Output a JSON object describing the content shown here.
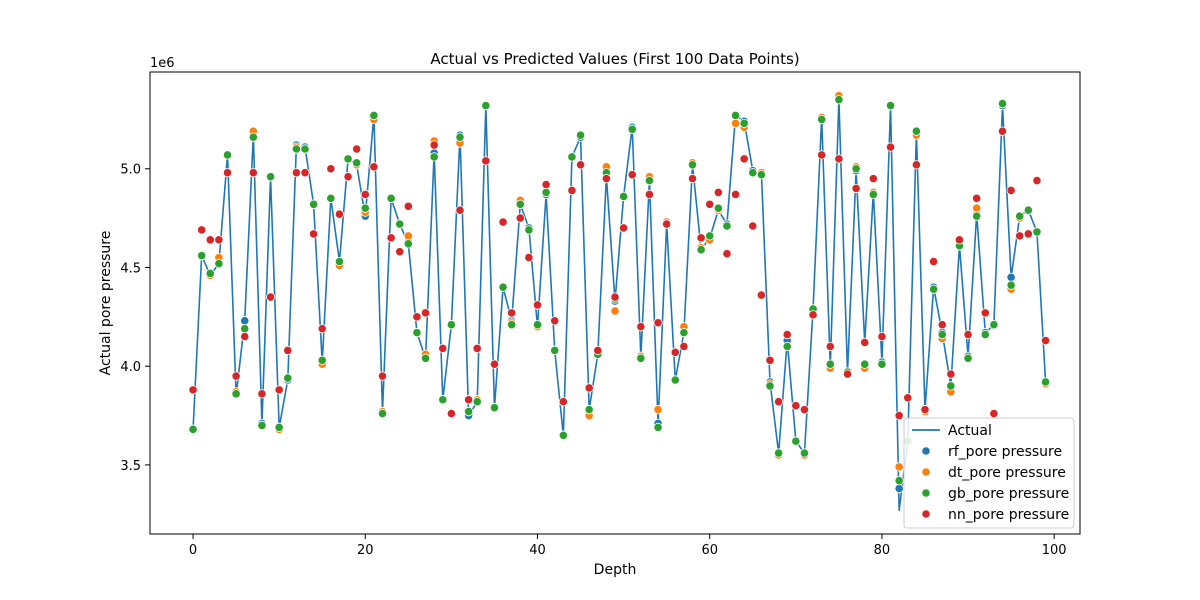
{
  "chart_data": {
    "type": "scatter",
    "title": "Actual vs Predicted Values (First 100 Data Points)",
    "xlabel": "Depth",
    "ylabel": "Actual pore pressure",
    "offset_text": "1e6",
    "xlim": [
      -5,
      103
    ],
    "ylim": [
      3.15,
      5.49
    ],
    "x_ticks": [
      0,
      20,
      40,
      60,
      80,
      100
    ],
    "y_ticks": [
      3.5,
      4.0,
      4.5,
      5.0
    ],
    "y_tick_labels": [
      "3.5",
      "4.0",
      "4.5",
      "5.0"
    ],
    "grid": false,
    "legend_position": "lower-right",
    "x": [
      0,
      1,
      2,
      3,
      4,
      5,
      6,
      7,
      8,
      9,
      10,
      11,
      12,
      13,
      14,
      15,
      16,
      17,
      18,
      19,
      20,
      21,
      22,
      23,
      24,
      25,
      26,
      27,
      28,
      29,
      30,
      31,
      32,
      33,
      34,
      35,
      36,
      37,
      38,
      39,
      40,
      41,
      42,
      43,
      44,
      45,
      46,
      47,
      48,
      49,
      50,
      51,
      52,
      53,
      54,
      55,
      56,
      57,
      58,
      59,
      60,
      61,
      62,
      63,
      64,
      65,
      66,
      67,
      68,
      69,
      70,
      71,
      72,
      73,
      74,
      75,
      76,
      77,
      78,
      79,
      80,
      81,
      82,
      83,
      84,
      85,
      86,
      87,
      88,
      89,
      90,
      91,
      92,
      93,
      94,
      95,
      96,
      97,
      98,
      99
    ],
    "series": [
      {
        "name": "Actual",
        "kind": "line",
        "color": "#1f77b4",
        "values": [
          3.68,
          4.56,
          4.46,
          4.52,
          5.07,
          3.85,
          4.23,
          5.17,
          3.71,
          4.96,
          3.69,
          3.93,
          5.12,
          5.11,
          4.82,
          4.02,
          4.85,
          4.53,
          5.05,
          5.02,
          4.76,
          5.27,
          3.77,
          4.85,
          4.72,
          4.62,
          4.17,
          4.04,
          5.08,
          3.83,
          4.21,
          5.17,
          3.75,
          3.82,
          5.32,
          3.79,
          4.4,
          4.23,
          4.82,
          4.7,
          4.2,
          4.87,
          4.08,
          3.65,
          5.06,
          5.16,
          3.78,
          4.06,
          4.96,
          4.33,
          4.86,
          5.21,
          4.05,
          4.94,
          3.71,
          4.72,
          3.93,
          4.17,
          5.02,
          4.59,
          4.65,
          4.79,
          4.72,
          5.27,
          5.24,
          4.99,
          4.98,
          3.92,
          3.56,
          4.13,
          3.62,
          3.56,
          4.29,
          5.26,
          4.0,
          5.35,
          3.97,
          4.99,
          4.12,
          4.88,
          4.02,
          5.32,
          3.27,
          3.62,
          5.18,
          3.78,
          4.4,
          4.17,
          3.9,
          4.61,
          4.05,
          4.77,
          4.17,
          4.21,
          5.32,
          4.45,
          4.76,
          4.79,
          4.68,
          3.92
        ]
      },
      {
        "name": "rf_pore pressure",
        "kind": "scatter",
        "color": "#1f77b4",
        "values": [
          3.68,
          4.56,
          4.46,
          4.52,
          5.07,
          3.86,
          4.23,
          5.17,
          3.71,
          4.96,
          3.69,
          3.93,
          5.12,
          5.11,
          4.82,
          4.02,
          4.85,
          4.53,
          5.05,
          5.02,
          4.76,
          5.27,
          3.77,
          4.85,
          4.72,
          4.63,
          4.17,
          4.04,
          5.08,
          3.83,
          4.21,
          5.17,
          3.75,
          3.82,
          5.32,
          3.79,
          4.4,
          4.23,
          4.82,
          4.7,
          4.2,
          4.87,
          4.08,
          3.65,
          5.06,
          5.16,
          3.78,
          4.06,
          4.96,
          4.33,
          4.86,
          5.21,
          4.05,
          4.94,
          3.71,
          4.72,
          3.93,
          4.17,
          5.02,
          4.59,
          4.65,
          4.79,
          4.72,
          5.27,
          5.24,
          4.99,
          4.98,
          3.92,
          3.56,
          4.13,
          3.62,
          3.56,
          4.29,
          5.26,
          4.0,
          5.35,
          3.97,
          4.99,
          4.12,
          4.88,
          4.02,
          5.32,
          3.38,
          3.62,
          5.18,
          3.78,
          4.4,
          4.17,
          3.9,
          4.61,
          4.05,
          4.77,
          4.17,
          4.21,
          5.32,
          4.45,
          4.76,
          4.79,
          4.68,
          3.92
        ]
      },
      {
        "name": "dt_pore pressure",
        "kind": "scatter",
        "color": "#ff7f0e",
        "values": [
          3.68,
          4.56,
          4.46,
          4.55,
          5.07,
          3.87,
          4.19,
          5.19,
          3.7,
          4.96,
          3.68,
          3.94,
          5.11,
          5.1,
          4.82,
          4.01,
          4.85,
          4.51,
          5.05,
          5.02,
          4.78,
          5.25,
          3.77,
          4.85,
          4.72,
          4.66,
          4.17,
          4.06,
          5.14,
          3.83,
          4.21,
          5.13,
          3.77,
          3.83,
          5.32,
          3.79,
          4.4,
          4.22,
          4.84,
          4.69,
          4.2,
          4.88,
          4.08,
          3.65,
          5.06,
          5.17,
          3.75,
          4.07,
          5.01,
          4.28,
          4.86,
          5.2,
          4.05,
          4.96,
          3.78,
          4.73,
          3.93,
          4.2,
          5.03,
          4.6,
          4.64,
          4.79,
          4.71,
          5.23,
          5.21,
          4.98,
          4.98,
          3.91,
          3.55,
          4.1,
          3.62,
          3.55,
          4.29,
          5.26,
          3.99,
          5.37,
          3.96,
          5.01,
          3.99,
          4.88,
          4.01,
          5.32,
          3.49,
          3.62,
          5.17,
          3.77,
          4.39,
          4.14,
          3.87,
          4.62,
          4.04,
          4.8,
          4.16,
          4.21,
          5.33,
          4.39,
          4.75,
          4.79,
          4.68,
          3.91
        ]
      },
      {
        "name": "gb_pore pressure",
        "kind": "scatter",
        "color": "#2ca02c",
        "values": [
          3.68,
          4.56,
          4.47,
          4.52,
          5.07,
          3.86,
          4.19,
          5.16,
          3.7,
          4.96,
          3.69,
          3.94,
          5.1,
          5.1,
          4.82,
          4.03,
          4.85,
          4.53,
          5.05,
          5.03,
          4.8,
          5.27,
          3.76,
          4.85,
          4.72,
          4.62,
          4.17,
          4.04,
          5.06,
          3.83,
          4.21,
          5.16,
          3.77,
          3.82,
          5.32,
          3.79,
          4.4,
          4.21,
          4.82,
          4.69,
          4.21,
          4.88,
          4.08,
          3.65,
          5.06,
          5.17,
          3.78,
          4.06,
          4.98,
          4.34,
          4.86,
          5.2,
          4.04,
          4.94,
          3.69,
          4.72,
          3.93,
          4.17,
          5.02,
          4.59,
          4.66,
          4.8,
          4.71,
          5.27,
          5.23,
          4.98,
          4.97,
          3.9,
          3.56,
          4.1,
          3.62,
          3.56,
          4.29,
          5.25,
          4.01,
          5.35,
          3.97,
          5.0,
          4.01,
          4.87,
          4.01,
          5.32,
          3.42,
          3.62,
          5.19,
          3.78,
          4.39,
          4.16,
          3.9,
          4.61,
          4.04,
          4.76,
          4.16,
          4.21,
          5.33,
          4.41,
          4.76,
          4.79,
          4.68,
          3.92
        ]
      },
      {
        "name": "nn_pore pressure",
        "kind": "scatter",
        "color": "#d62728",
        "values": [
          3.88,
          4.69,
          4.64,
          4.64,
          4.98,
          3.95,
          4.15,
          4.98,
          3.86,
          4.35,
          3.88,
          4.08,
          4.98,
          4.98,
          4.67,
          4.19,
          5.0,
          4.77,
          4.96,
          5.1,
          4.87,
          5.01,
          3.95,
          4.65,
          4.58,
          4.81,
          4.25,
          4.27,
          5.12,
          4.09,
          3.76,
          4.79,
          3.83,
          4.09,
          5.04,
          4.01,
          4.73,
          4.27,
          4.75,
          4.55,
          4.31,
          4.92,
          4.23,
          3.82,
          4.89,
          5.02,
          3.89,
          4.08,
          4.95,
          4.35,
          4.7,
          4.97,
          4.2,
          4.87,
          4.22,
          4.72,
          4.07,
          4.1,
          4.95,
          4.65,
          4.82,
          4.88,
          4.57,
          4.87,
          5.05,
          4.71,
          4.36,
          4.03,
          3.82,
          4.16,
          3.8,
          3.78,
          4.26,
          5.07,
          4.1,
          5.05,
          3.96,
          4.9,
          4.12,
          4.95,
          4.15,
          5.11,
          3.75,
          3.84,
          5.02,
          3.78,
          4.53,
          4.21,
          3.96,
          4.64,
          4.16,
          4.85,
          4.27,
          3.76,
          5.19,
          4.89,
          4.66,
          4.67,
          4.94,
          4.13
        ]
      }
    ]
  }
}
